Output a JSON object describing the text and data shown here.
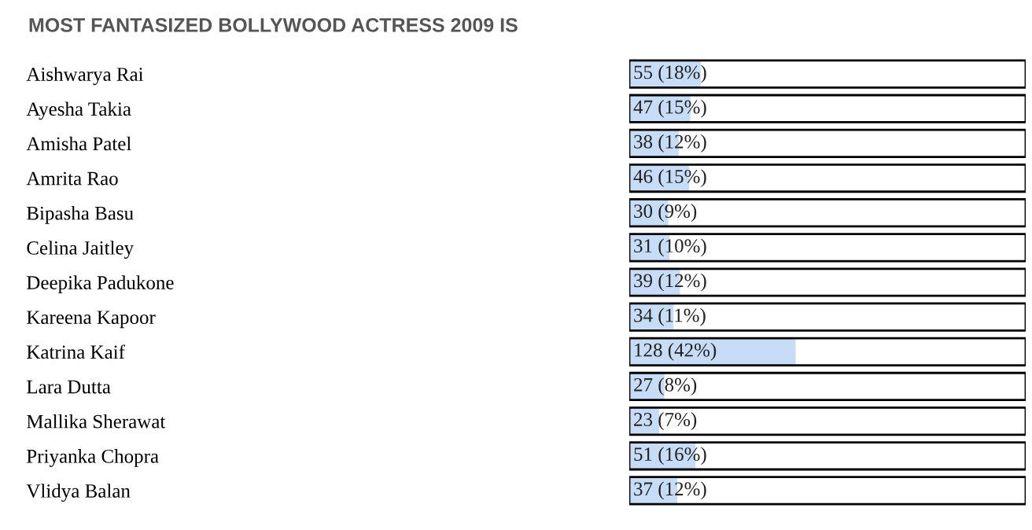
{
  "chart_data": {
    "type": "bar",
    "orientation": "horizontal",
    "title": "MOST FANTASIZED BOLLYWOOD ACTRESS 2009 IS",
    "categories": [
      "Aishwarya Rai",
      "Ayesha Takia",
      "Amisha Patel",
      "Amrita Rao",
      "Bipasha Basu",
      "Celina Jaitley",
      "Deepika Padukone",
      "Kareena Kapoor",
      "Katrina Kaif",
      "Lara Dutta",
      "Mallika Sherawat",
      "Priyanka Chopra",
      "Vlidya Balan"
    ],
    "values": [
      55,
      47,
      38,
      46,
      30,
      31,
      39,
      34,
      128,
      27,
      23,
      51,
      37
    ],
    "value_labels": [
      "55 (18%)",
      "47 (15%)",
      "38 (12%)",
      "46 (15%)",
      "30 (9%)",
      "31 (10%)",
      "39 (12%)",
      "34 (11%)",
      "128 (42%)",
      "27 (8%)",
      "23 (7%)",
      "51 (16%)",
      "37 (12%)"
    ],
    "color": "#c6dcf7",
    "xlim": [
      0,
      305
    ],
    "tick_labels": "y",
    "grid": false,
    "legend": false
  }
}
